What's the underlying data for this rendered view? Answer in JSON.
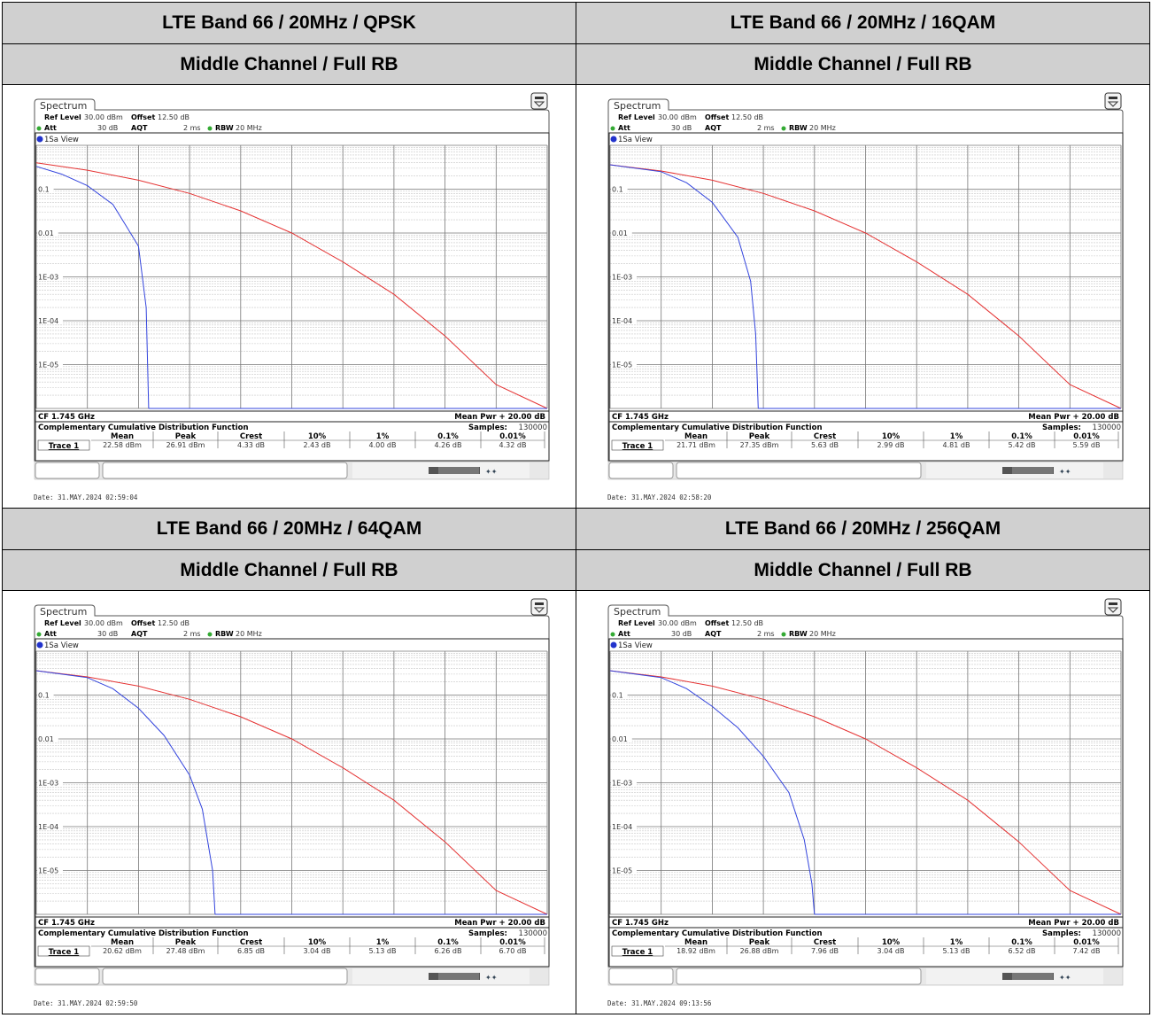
{
  "ui": {
    "spectrum_tab": "Spectrum",
    "ref_level_label": "Ref Level",
    "ref_level_value": "30.00 dBm",
    "offset_label": "Offset",
    "offset_value": "12.50 dB",
    "att_label": "Att",
    "att_value": "30 dB",
    "aqt_label": "AQT",
    "aqt_value": "2 ms",
    "rbw_label": "RBW",
    "rbw_value": "20 MHz",
    "view_label": "1Sa View",
    "cf_label": "CF 1.745 GHz",
    "mean_pwr_label": "Mean Pwr + 20.00 dB",
    "ccdf_title": "Complementary Cumulative Distribution Function",
    "samples_label": "Samples:",
    "samples_value": "130000",
    "cols": [
      "Mean",
      "Peak",
      "Crest",
      "10%",
      "1%",
      "0.1%",
      "0.01%"
    ],
    "trace_label": "Trace 1",
    "ylabels": [
      "0.1",
      "0.01",
      "1E-03",
      "1E-04",
      "1E-05"
    ],
    "colors": {
      "red_trace": "#e53333",
      "blue_trace": "#3344dd",
      "marker": "#2233cc",
      "green_led": "#33aa33"
    }
  },
  "panels": [
    {
      "header": "LTE Band 66 / 20MHz / QPSK",
      "subheader": "Middle Channel / Full RB",
      "date": "Date: 31.MAY.2024  02:59:04",
      "stats": [
        "22.58 dBm",
        "26.91 dBm",
        "4.33 dB",
        "2.43 dB",
        "4.00 dB",
        "4.26 dB",
        "4.32 dB"
      ]
    },
    {
      "header": "LTE Band 66 / 20MHz / 16QAM",
      "subheader": "Middle Channel / Full RB",
      "date": "Date: 31.MAY.2024  02:58:20",
      "stats": [
        "21.71 dBm",
        "27.35 dBm",
        "5.63 dB",
        "2.99 dB",
        "4.81 dB",
        "5.42 dB",
        "5.59 dB"
      ]
    },
    {
      "header": "LTE Band 66 / 20MHz / 64QAM",
      "subheader": "Middle Channel / Full RB",
      "date": "Date: 31.MAY.2024  02:59:50",
      "stats": [
        "20.62 dBm",
        "27.48 dBm",
        "6.85 dB",
        "3.04 dB",
        "5.13 dB",
        "6.26 dB",
        "6.70 dB"
      ]
    },
    {
      "header": "LTE Band 66 / 20MHz / 256QAM",
      "subheader": "Middle Channel / Full RB",
      "date": "Date: 31.MAY.2024  09:13:56",
      "stats": [
        "18.92 dBm",
        "26.88 dBm",
        "7.96 dB",
        "3.04 dB",
        "5.13 dB",
        "6.52 dB",
        "7.42 dB"
      ]
    }
  ],
  "chart_data": [
    {
      "type": "line",
      "title": "Complementary Cumulative Distribution Function",
      "xlim": [
        0,
        20
      ],
      "ylim": [
        1e-06,
        1
      ],
      "y_scale": "log",
      "series": [
        {
          "x": [
            0,
            2,
            4,
            6,
            8,
            10,
            12,
            14,
            16,
            18,
            20
          ],
          "y": [
            0.4,
            0.27,
            0.16,
            0.08,
            0.032,
            0.01,
            0.0022,
            0.0004,
            4.5e-05,
            3.5e-06,
            1e-06
          ]
        },
        {
          "x": [
            0,
            1,
            2,
            3,
            3.5,
            4,
            4.3,
            4.4
          ],
          "y": [
            0.33,
            0.22,
            0.12,
            0.045,
            0.015,
            0.005,
            0.0002,
            1e-06
          ]
        }
      ]
    },
    {
      "type": "line",
      "title": "Complementary Cumulative Distribution Function",
      "xlim": [
        0,
        20
      ],
      "ylim": [
        1e-06,
        1
      ],
      "y_scale": "log",
      "series": [
        {
          "x": [
            0,
            2,
            4,
            6,
            8,
            10,
            12,
            14,
            16,
            18,
            20
          ],
          "y": [
            0.36,
            0.26,
            0.16,
            0.08,
            0.032,
            0.01,
            0.0022,
            0.0004,
            4.5e-05,
            3.5e-06,
            1e-06
          ]
        },
        {
          "x": [
            0,
            2,
            3,
            4,
            5,
            5.5,
            5.7,
            5.8
          ],
          "y": [
            0.36,
            0.25,
            0.14,
            0.05,
            0.008,
            0.0008,
            5e-05,
            1e-06
          ]
        }
      ]
    },
    {
      "type": "line",
      "title": "Complementary Cumulative Distribution Function",
      "xlim": [
        0,
        20
      ],
      "ylim": [
        1e-06,
        1
      ],
      "y_scale": "log",
      "series": [
        {
          "x": [
            0,
            2,
            4,
            6,
            8,
            10,
            12,
            14,
            16,
            18,
            20
          ],
          "y": [
            0.36,
            0.26,
            0.16,
            0.08,
            0.032,
            0.01,
            0.0022,
            0.0004,
            4.5e-05,
            3.5e-06,
            1e-06
          ]
        },
        {
          "x": [
            0,
            2,
            3,
            4,
            5,
            6,
            6.5,
            6.9,
            7.0
          ],
          "y": [
            0.36,
            0.25,
            0.14,
            0.05,
            0.012,
            0.0015,
            0.00025,
            1e-05,
            1e-06
          ]
        }
      ]
    },
    {
      "type": "line",
      "title": "Complementary Cumulative Distribution Function",
      "xlim": [
        0,
        20
      ],
      "ylim": [
        1e-06,
        1
      ],
      "y_scale": "log",
      "series": [
        {
          "x": [
            0,
            2,
            4,
            6,
            8,
            10,
            12,
            14,
            16,
            18,
            20
          ],
          "y": [
            0.36,
            0.26,
            0.16,
            0.08,
            0.032,
            0.01,
            0.0022,
            0.0004,
            4.5e-05,
            3.5e-06,
            1e-06
          ]
        },
        {
          "x": [
            0,
            2,
            3,
            4,
            5,
            6,
            7,
            7.6,
            7.9,
            8.0
          ],
          "y": [
            0.36,
            0.25,
            0.14,
            0.055,
            0.018,
            0.004,
            0.0006,
            5e-05,
            5e-06,
            1e-06
          ]
        }
      ]
    }
  ]
}
